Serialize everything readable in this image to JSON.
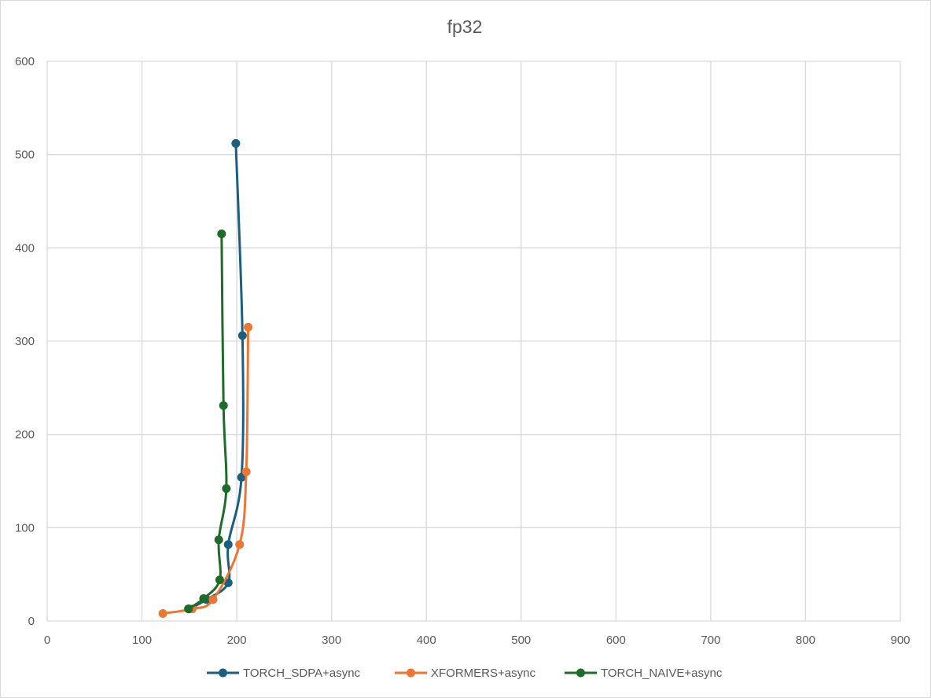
{
  "chart_data": {
    "type": "scatter",
    "title": "fp32",
    "xlabel": "",
    "ylabel": "",
    "xlim": [
      0,
      900
    ],
    "ylim": [
      0,
      600
    ],
    "x_ticks": [
      0,
      100,
      200,
      300,
      400,
      500,
      600,
      700,
      800,
      900
    ],
    "y_ticks": [
      0,
      100,
      200,
      300,
      400,
      500,
      600
    ],
    "grid": true,
    "smoothed_lines": true,
    "legend_position": "bottom",
    "series": [
      {
        "name": "TORCH_SDPA+async",
        "color": "#1a5f80",
        "points": [
          [
            150,
            13
          ],
          [
            168,
            23
          ],
          [
            191,
            41
          ],
          [
            191,
            82
          ],
          [
            205,
            154
          ],
          [
            206,
            306
          ],
          [
            199,
            512
          ]
        ]
      },
      {
        "name": "XFORMERS+async",
        "color": "#ed7633",
        "points": [
          [
            122,
            8
          ],
          [
            153,
            13
          ],
          [
            175,
            23
          ],
          [
            203,
            82
          ],
          [
            210,
            160
          ],
          [
            212,
            315
          ]
        ]
      },
      {
        "name": "TORCH_NAIVE+async",
        "color": "#1e6b2a",
        "points": [
          [
            149,
            13
          ],
          [
            165,
            24
          ],
          [
            182,
            44
          ],
          [
            181,
            87
          ],
          [
            189,
            142
          ],
          [
            186,
            231
          ],
          [
            184,
            415
          ]
        ]
      }
    ]
  }
}
